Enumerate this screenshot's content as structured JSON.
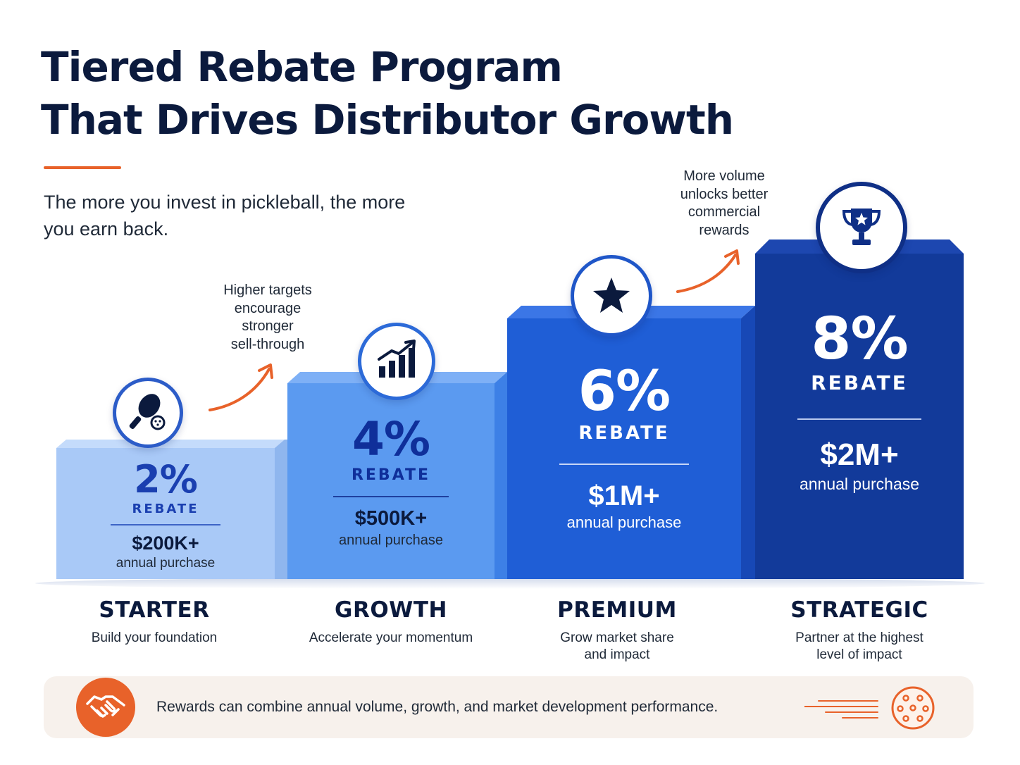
{
  "header": {
    "title_line1": "Tiered Rebate Program",
    "title_line2": "That Drives Distributor Growth",
    "subtitle": "The more you invest in pickleball, the more you earn back."
  },
  "notes": {
    "note1": [
      "Higher targets",
      "encourage",
      "stronger",
      "sell-through"
    ],
    "note2": [
      "More volume",
      "unlocks better",
      "commercial",
      "rewards"
    ]
  },
  "tiers": [
    {
      "pct": "2%",
      "rebate": "REBATE",
      "amount": "$200K+",
      "annual": "annual purchase",
      "name": "STARTER",
      "desc": "Build your foundation",
      "icon": "pickleball-paddle-icon"
    },
    {
      "pct": "4%",
      "rebate": "REBATE",
      "amount": "$500K+",
      "annual": "annual purchase",
      "name": "GROWTH",
      "desc": "Accelerate your momentum",
      "icon": "growth-chart-icon"
    },
    {
      "pct": "6%",
      "rebate": "REBATE",
      "amount": "$1M+",
      "annual": "annual purchase",
      "name": "PREMIUM",
      "desc_line1": "Grow market share",
      "desc_line2": "and impact",
      "icon": "star-icon"
    },
    {
      "pct": "8%",
      "rebate": "REBATE",
      "amount": "$2M+",
      "annual": "annual purchase",
      "name": "STRATEGIC",
      "desc_line1": "Partner at the highest",
      "desc_line2": "level of impact",
      "icon": "trophy-icon"
    }
  ],
  "footer": {
    "text": "Rewards can combine annual volume, growth, and market development performance.",
    "left_icon": "handshake-icon",
    "right_icon": "pickleball-icon"
  },
  "colors": {
    "navy": "#0b1a3d",
    "accent": "#e8622a",
    "tier1": "#a9c9f7",
    "tier2": "#5b9af0",
    "tier3": "#1f5ed6",
    "tier4": "#123a9a"
  }
}
